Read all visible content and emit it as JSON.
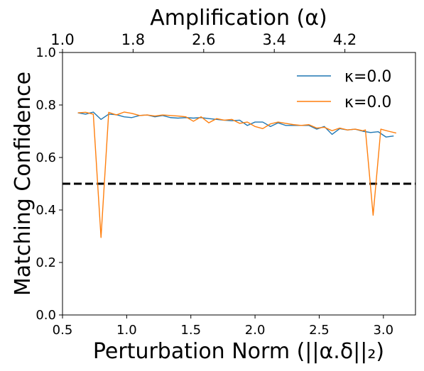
{
  "chart_data": {
    "type": "line",
    "xlabel": "Perturbation Norm (||α.δ||₂)",
    "ylabel": "Matching Confidence",
    "top_xlabel": "Amplification (α)",
    "xlim": [
      0.5,
      3.25
    ],
    "ylim": [
      0.0,
      1.0
    ],
    "x_ticks": [
      "0.5",
      "1.0",
      "1.5",
      "2.0",
      "2.5",
      "3.0"
    ],
    "x_tick_values": [
      0.5,
      1.0,
      1.5,
      2.0,
      2.5,
      3.0
    ],
    "y_ticks": [
      "0.0",
      "0.2",
      "0.4",
      "0.6",
      "0.8",
      "1.0"
    ],
    "y_tick_values": [
      0.0,
      0.2,
      0.4,
      0.6,
      0.8,
      1.0
    ],
    "top_ticks": [
      "1.0",
      "1.8",
      "2.6",
      "3.4",
      "4.2"
    ],
    "top_tick_positions_on_x": [
      0.5,
      1.05,
      1.6,
      2.15,
      2.7
    ],
    "threshold": {
      "y": 0.5,
      "style": "dashed",
      "color": "#000000"
    },
    "legend": {
      "placement": "top-right"
    },
    "series": [
      {
        "name": "κ=0.0",
        "color": "#1f77b4",
        "x": [
          0.62,
          0.68,
          0.74,
          0.8,
          0.86,
          0.92,
          0.98,
          1.04,
          1.1,
          1.16,
          1.22,
          1.28,
          1.34,
          1.4,
          1.46,
          1.52,
          1.58,
          1.64,
          1.7,
          1.76,
          1.82,
          1.88,
          1.94,
          2.0,
          2.06,
          2.12,
          2.18,
          2.24,
          2.3,
          2.36,
          2.42,
          2.48,
          2.54,
          2.6,
          2.66,
          2.72,
          2.78,
          2.84,
          2.9,
          2.96,
          3.02,
          3.08
        ],
        "y": [
          0.77,
          0.765,
          0.773,
          0.745,
          0.765,
          0.763,
          0.755,
          0.752,
          0.76,
          0.762,
          0.755,
          0.76,
          0.752,
          0.75,
          0.752,
          0.75,
          0.752,
          0.748,
          0.745,
          0.742,
          0.74,
          0.742,
          0.722,
          0.735,
          0.735,
          0.718,
          0.732,
          0.722,
          0.722,
          0.722,
          0.722,
          0.708,
          0.718,
          0.688,
          0.71,
          0.705,
          0.708,
          0.7,
          0.695,
          0.698,
          0.678,
          0.682
        ]
      },
      {
        "name": "κ=0.0",
        "color": "#ff7f0e",
        "x": [
          0.62,
          0.68,
          0.74,
          0.8,
          0.86,
          0.92,
          0.98,
          1.04,
          1.1,
          1.16,
          1.22,
          1.28,
          1.34,
          1.4,
          1.46,
          1.52,
          1.58,
          1.64,
          1.7,
          1.76,
          1.82,
          1.88,
          1.94,
          2.0,
          2.06,
          2.12,
          2.18,
          2.24,
          2.3,
          2.36,
          2.42,
          2.48,
          2.54,
          2.6,
          2.66,
          2.72,
          2.78,
          2.84,
          2.86,
          2.92,
          2.98,
          3.04,
          3.1
        ],
        "y": [
          0.77,
          0.772,
          0.765,
          0.295,
          0.772,
          0.762,
          0.773,
          0.768,
          0.76,
          0.762,
          0.758,
          0.762,
          0.76,
          0.758,
          0.755,
          0.738,
          0.755,
          0.732,
          0.748,
          0.742,
          0.745,
          0.73,
          0.735,
          0.718,
          0.71,
          0.728,
          0.735,
          0.73,
          0.725,
          0.722,
          0.725,
          0.712,
          0.715,
          0.702,
          0.712,
          0.705,
          0.708,
          0.702,
          0.705,
          0.38,
          0.708,
          0.7,
          0.693
        ]
      }
    ]
  }
}
